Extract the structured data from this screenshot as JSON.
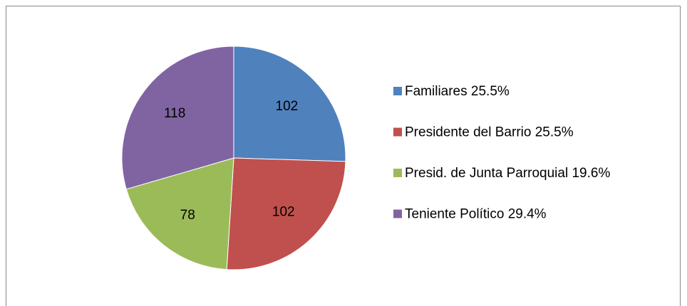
{
  "chart_data": {
    "type": "pie",
    "categories": [
      "Familiares 25.5%",
      "Presidente del Barrio 25.5%",
      "Presid. de Junta Parroquial 19.6%",
      "Teniente Político 29.4%"
    ],
    "values": [
      102,
      102,
      78,
      118
    ],
    "colors": [
      "#4f81bd",
      "#c0504d",
      "#9bbb59",
      "#8064a2"
    ],
    "legend": "right"
  }
}
